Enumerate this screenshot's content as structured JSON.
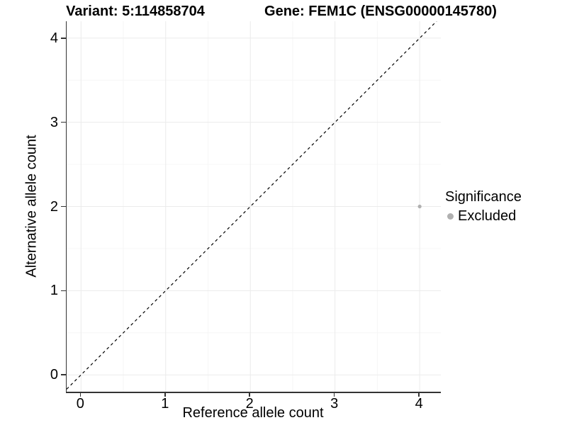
{
  "header": {
    "variant_title": "Variant: 5:114858704",
    "gene_title": "Gene: FEM1C (ENSG00000145780)"
  },
  "chart_data": {
    "type": "scatter",
    "title": "Variant: 5:114858704 | Gene: FEM1C (ENSG00000145780)",
    "xlabel": "Reference allele count",
    "ylabel": "Alternative allele count",
    "x_ticks": [
      0,
      1,
      2,
      3,
      4
    ],
    "y_ticks": [
      0,
      1,
      2,
      3,
      4
    ],
    "xlim": [
      -0.17,
      4.25
    ],
    "ylim": [
      -0.2,
      4.2
    ],
    "grid": {
      "major_color": "#ebebeb",
      "minor_color": "#f6f6f6",
      "minor_step": 0.5
    },
    "reference_line": {
      "kind": "identity y=x",
      "style": "dashed",
      "color": "#000000",
      "dash": "4 4"
    },
    "series": [
      {
        "name": "Excluded",
        "color": "#b0b0b0",
        "points": [
          [
            4,
            2
          ]
        ]
      }
    ],
    "legend": {
      "title": "Significance",
      "position": "right"
    }
  },
  "colors": {
    "axis_line": "#333333",
    "tick_mark": "#333333",
    "text": "#000000",
    "background": "#ffffff"
  }
}
